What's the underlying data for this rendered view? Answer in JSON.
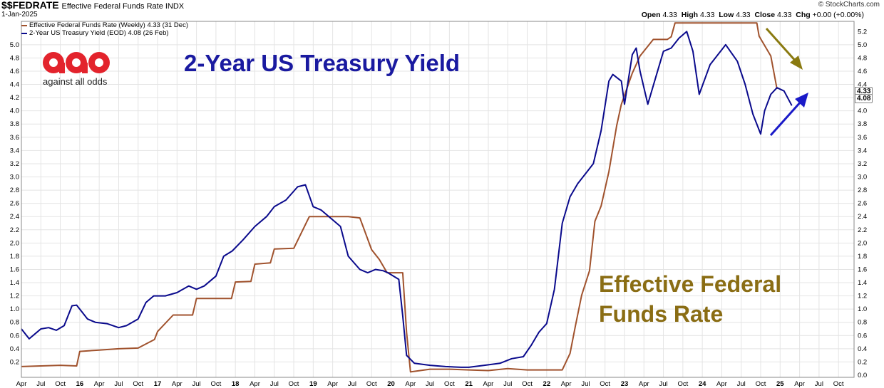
{
  "header": {
    "symbol": "$$FEDRATE",
    "description": "Effective Federal Funds Rate INDX",
    "date": "1-Jan-2025",
    "credit": "© StockCharts.com",
    "ohlc": {
      "open_label": "Open",
      "open": "4.33",
      "high_label": "High",
      "high": "4.33",
      "low_label": "Low",
      "low": "4.33",
      "close_label": "Close",
      "close": "4.33",
      "chg_label": "Chg",
      "chg": "+0.00 (+0.00%)"
    }
  },
  "legend": {
    "ffr": "Effective Federal Funds Rate (Weekly) 4.33 (31 Dec)",
    "yield": "2-Year US Treasury Yield (EOD) 4.08 (26 Feb)"
  },
  "logo": {
    "mark": "aao",
    "text": "against all odds"
  },
  "annotations": {
    "yield_title": "2-Year US Treasury Yield",
    "ffr_title_line1": "Effective Federal",
    "ffr_title_line2": "Funds Rate"
  },
  "price_tags": {
    "ffr": "4.33",
    "yield": "4.08"
  },
  "colors": {
    "ffr": "#a0522d",
    "yield": "#0a0a8c",
    "ffr_label": "#8a6d14",
    "yield_label": "#1a1aa0",
    "grid": "#e4e4e4"
  },
  "chart_data": {
    "type": "line",
    "x_start": 2015.25,
    "x_end": 2025.95,
    "ylim": [
      0,
      5.3
    ],
    "left_ticks": [
      "0.2",
      "0.4",
      "0.6",
      "0.8",
      "1.0",
      "1.2",
      "1.4",
      "1.6",
      "1.8",
      "2.0",
      "2.2",
      "2.4",
      "2.6",
      "2.8",
      "3.0",
      "3.2",
      "3.4",
      "3.6",
      "3.8",
      "4.0",
      "4.2",
      "4.4",
      "4.6",
      "4.8",
      "5.0"
    ],
    "right_ticks": [
      "0.0",
      "0.2",
      "0.4",
      "0.6",
      "0.8",
      "1.0",
      "1.2",
      "1.4",
      "1.6",
      "1.8",
      "2.0",
      "2.2",
      "2.4",
      "2.6",
      "2.8",
      "3.0",
      "3.2",
      "3.4",
      "3.6",
      "3.8",
      "4.0",
      "4.2",
      "4.4",
      "4.6",
      "4.8",
      "5.0",
      "5.2"
    ],
    "x_labels": [
      "Apr",
      "Jul",
      "Oct",
      "16",
      "Apr",
      "Jul",
      "Oct",
      "17",
      "Apr",
      "Jul",
      "Oct",
      "18",
      "Apr",
      "Jul",
      "Oct",
      "19",
      "Apr",
      "Jul",
      "Oct",
      "20",
      "Apr",
      "Jul",
      "Oct",
      "21",
      "Apr",
      "Jul",
      "Oct",
      "22",
      "Apr",
      "Jul",
      "Oct",
      "23",
      "Apr",
      "Jul",
      "Oct",
      "24",
      "Apr",
      "Jul",
      "Oct",
      "25",
      "Apr",
      "Jul",
      "Oct"
    ],
    "grid": true,
    "series": [
      {
        "name": "Effective Federal Funds Rate (Weekly)",
        "x": [
          2015.25,
          2015.5,
          2015.75,
          2015.96,
          2016.0,
          2016.25,
          2016.5,
          2016.75,
          2016.96,
          2017.0,
          2017.2,
          2017.45,
          2017.5,
          2017.95,
          2018.0,
          2018.2,
          2018.25,
          2018.45,
          2018.5,
          2018.75,
          2018.95,
          2019.0,
          2019.45,
          2019.6,
          2019.75,
          2019.85,
          2019.95,
          2020.15,
          2020.2,
          2020.25,
          2020.5,
          2020.75,
          2021.0,
          2021.25,
          2021.5,
          2021.75,
          2022.0,
          2022.2,
          2022.3,
          2022.37,
          2022.45,
          2022.55,
          2022.62,
          2022.7,
          2022.8,
          2022.9,
          2022.96,
          2023.1,
          2023.2,
          2023.37,
          2023.55,
          2023.6,
          2023.65,
          2024.0,
          2024.5,
          2024.7,
          2024.73,
          2024.88,
          2024.96
        ],
        "values": [
          0.13,
          0.14,
          0.15,
          0.14,
          0.36,
          0.38,
          0.4,
          0.41,
          0.54,
          0.66,
          0.91,
          0.91,
          1.16,
          1.16,
          1.41,
          1.42,
          1.68,
          1.7,
          1.91,
          1.92,
          2.4,
          2.4,
          2.4,
          2.38,
          1.9,
          1.75,
          1.55,
          1.55,
          0.65,
          0.05,
          0.09,
          0.09,
          0.08,
          0.07,
          0.1,
          0.08,
          0.08,
          0.08,
          0.33,
          0.75,
          1.21,
          1.58,
          2.33,
          2.56,
          3.08,
          3.78,
          4.1,
          4.57,
          4.83,
          5.08,
          5.08,
          5.12,
          5.33,
          5.33,
          5.33,
          5.33,
          5.13,
          4.83,
          4.33
        ]
      },
      {
        "name": "2-Year US Treasury Yield (EOD)",
        "x": [
          2015.25,
          2015.35,
          2015.45,
          2015.5,
          2015.6,
          2015.7,
          2015.8,
          2015.9,
          2015.96,
          2016.1,
          2016.2,
          2016.35,
          2016.5,
          2016.6,
          2016.75,
          2016.85,
          2016.95,
          2017.1,
          2017.25,
          2017.4,
          2017.5,
          2017.6,
          2017.75,
          2017.85,
          2017.96,
          2018.1,
          2018.25,
          2018.4,
          2018.5,
          2018.65,
          2018.8,
          2018.9,
          2019.0,
          2019.1,
          2019.25,
          2019.35,
          2019.45,
          2019.6,
          2019.7,
          2019.8,
          2019.9,
          2019.96,
          2020.1,
          2020.15,
          2020.2,
          2020.3,
          2020.5,
          2020.7,
          2020.9,
          2021.0,
          2021.2,
          2021.4,
          2021.55,
          2021.7,
          2021.8,
          2021.9,
          2022.0,
          2022.1,
          2022.2,
          2022.3,
          2022.4,
          2022.5,
          2022.6,
          2022.7,
          2022.8,
          2022.85,
          2022.96,
          2023.0,
          2023.1,
          2023.15,
          2023.2,
          2023.3,
          2023.4,
          2023.5,
          2023.6,
          2023.7,
          2023.8,
          2023.88,
          2023.96,
          2024.1,
          2024.3,
          2024.45,
          2024.55,
          2024.65,
          2024.75,
          2024.8,
          2024.88,
          2024.96,
          2025.05,
          2025.15
        ],
        "values": [
          0.7,
          0.55,
          0.65,
          0.7,
          0.72,
          0.68,
          0.75,
          1.05,
          1.06,
          0.85,
          0.8,
          0.78,
          0.72,
          0.75,
          0.85,
          1.1,
          1.2,
          1.2,
          1.25,
          1.35,
          1.3,
          1.35,
          1.5,
          1.8,
          1.88,
          2.05,
          2.25,
          2.4,
          2.55,
          2.65,
          2.85,
          2.88,
          2.55,
          2.5,
          2.35,
          2.25,
          1.8,
          1.6,
          1.55,
          1.6,
          1.58,
          1.55,
          1.45,
          0.9,
          0.3,
          0.18,
          0.15,
          0.13,
          0.12,
          0.12,
          0.15,
          0.18,
          0.25,
          0.28,
          0.45,
          0.65,
          0.78,
          1.3,
          2.3,
          2.7,
          2.9,
          3.05,
          3.2,
          3.7,
          4.45,
          4.55,
          4.45,
          4.1,
          4.85,
          4.95,
          4.6,
          4.1,
          4.5,
          4.9,
          4.95,
          5.1,
          5.2,
          4.9,
          4.25,
          4.7,
          5.0,
          4.75,
          4.4,
          3.95,
          3.65,
          4.0,
          4.25,
          4.35,
          4.3,
          4.08
        ]
      }
    ]
  }
}
